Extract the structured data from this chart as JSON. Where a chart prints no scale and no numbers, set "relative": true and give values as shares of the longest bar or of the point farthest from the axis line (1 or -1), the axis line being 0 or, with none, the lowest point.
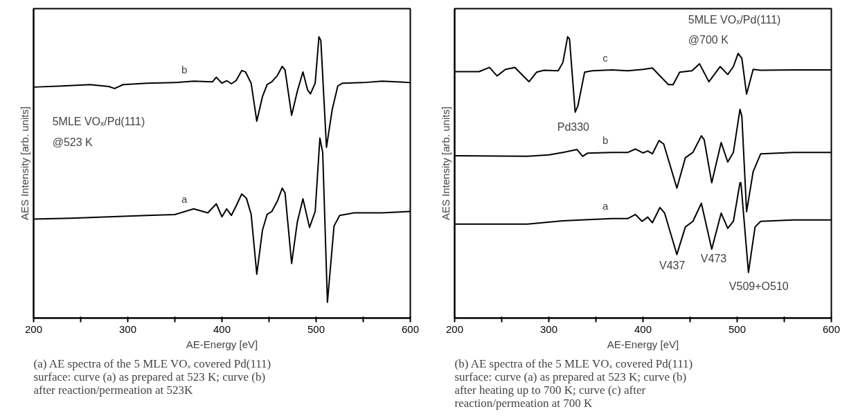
{
  "chart_data": [
    {
      "type": "line",
      "relative": true,
      "title": "(a) AE spectra of the 5 MLE VOₓ covered Pd(111) surface: curve (a) as prepared at 523 K; curve (b) after reaction/permeation at 523K",
      "xlabel": "AE-Energy [eV]",
      "ylabel": "AES Intensity [arb. units]",
      "xlim": [
        200,
        600
      ],
      "xticks": [
        200,
        {
          "value": 250,
          "label": null
        },
        300,
        {
          "value": 350,
          "label": null
        },
        400,
        {
          "value": 450,
          "label": null
        },
        500,
        {
          "value": 550,
          "label": null
        },
        600
      ],
      "series": [
        {
          "name": "a",
          "color": "#000000",
          "x": [
            200,
            240,
            280,
            320,
            350,
            370,
            385,
            394,
            400,
            405,
            410,
            415,
            421,
            426,
            431,
            437,
            443,
            448,
            453,
            459,
            464,
            467,
            474,
            480,
            486,
            493,
            499,
            504,
            507,
            512,
            519,
            525,
            540,
            570,
            600
          ],
          "values": [
            0.352,
            0.355,
            0.36,
            0.365,
            0.368,
            0.388,
            0.374,
            0.406,
            0.36,
            0.388,
            0.365,
            0.398,
            0.441,
            0.426,
            0.369,
            0.156,
            0.312,
            0.369,
            0.379,
            0.417,
            0.462,
            0.445,
            0.194,
            0.341,
            0.424,
            0.322,
            0.379,
            0.64,
            0.588,
            0.056,
            0.327,
            0.365,
            0.374,
            0.374,
            0.379
          ]
        },
        {
          "name": "b",
          "color": "#000000",
          "x": [
            200,
            230,
            260,
            280,
            286,
            295,
            320,
            350,
            370,
            390,
            394,
            400,
            405,
            410,
            415,
            421,
            425,
            431,
            437,
            443,
            448,
            453,
            459,
            464,
            467,
            474,
            480,
            486,
            491,
            494,
            499,
            503,
            505,
            511,
            517,
            523,
            528,
            550,
            570,
            590,
            600
          ],
          "values": [
            0.821,
            0.825,
            0.83,
            0.823,
            0.816,
            0.83,
            0.835,
            0.837,
            0.842,
            0.84,
            0.856,
            0.835,
            0.844,
            0.833,
            0.844,
            0.88,
            0.875,
            0.835,
            0.7,
            0.787,
            0.83,
            0.84,
            0.863,
            0.895,
            0.882,
            0.721,
            0.806,
            0.875,
            0.811,
            0.797,
            0.835,
            1.0,
            0.987,
            0.607,
            0.74,
            0.825,
            0.835,
            0.837,
            0.842,
            0.839,
            0.837
          ]
        }
      ],
      "annotations": [
        "5MLE VOₓ/Pd(111)",
        "@523 K"
      ]
    },
    {
      "type": "line",
      "relative": true,
      "title": "(b) AE spectra of the 5 MLE VOₓ covered Pd(111) surface: curve (a) as prepared at 523 K; curve (b) after heating up to 700 K; curve (c) after reaction/permeation at 700 K",
      "xlabel": "AE-Energy [eV]",
      "ylabel": "AES Intensity [arb. units]",
      "xlim": [
        200,
        600
      ],
      "xticks": [
        200,
        {
          "value": 250,
          "label": null
        },
        300,
        {
          "value": 350,
          "label": null
        },
        400,
        {
          "value": 450,
          "label": null
        },
        500,
        {
          "value": 550,
          "label": null
        },
        600
      ],
      "series": [
        {
          "name": "a",
          "color": "#000000",
          "x": [
            200,
            277,
            315,
            367,
            384,
            392,
            399,
            405,
            410,
            418,
            423,
            436,
            445,
            453,
            462,
            473,
            483,
            490,
            496,
            503,
            504,
            512,
            519,
            525,
            560,
            600
          ],
          "values": [
            0.334,
            0.334,
            0.346,
            0.354,
            0.354,
            0.368,
            0.344,
            0.359,
            0.339,
            0.393,
            0.373,
            0.226,
            0.324,
            0.344,
            0.408,
            0.245,
            0.373,
            0.319,
            0.344,
            0.481,
            0.481,
            0.162,
            0.324,
            0.344,
            0.349,
            0.349
          ]
        },
        {
          "name": "b",
          "color": "#000000",
          "x": [
            200,
            277,
            300,
            315,
            330,
            336,
            341,
            367,
            384,
            392,
            400,
            405,
            410,
            417,
            422,
            436,
            445,
            453,
            462,
            465,
            473,
            483,
            490,
            496,
            503,
            505,
            510,
            517,
            525,
            560,
            600
          ],
          "values": [
            0.577,
            0.575,
            0.58,
            0.589,
            0.599,
            0.575,
            0.586,
            0.589,
            0.589,
            0.601,
            0.587,
            0.594,
            0.584,
            0.631,
            0.619,
            0.462,
            0.57,
            0.589,
            0.648,
            0.634,
            0.481,
            0.624,
            0.555,
            0.589,
            0.742,
            0.717,
            0.378,
            0.521,
            0.584,
            0.589,
            0.589
          ]
        },
        {
          "name": "c",
          "color": "#000000",
          "x": [
            200,
            226,
            237,
            245,
            254,
            264,
            274,
            279,
            287,
            295,
            310,
            315,
            320,
            322,
            328,
            331,
            338,
            346,
            367,
            384,
            400,
            410,
            427,
            432,
            439,
            452,
            460,
            470,
            482,
            490,
            496,
            501,
            505,
            510,
            517,
            525,
            560,
            600
          ],
          "values": [
            0.876,
            0.876,
            0.891,
            0.861,
            0.884,
            0.891,
            0.857,
            0.84,
            0.874,
            0.881,
            0.879,
            0.909,
            1.0,
            0.992,
            0.732,
            0.756,
            0.874,
            0.879,
            0.882,
            0.879,
            0.884,
            0.889,
            0.83,
            0.83,
            0.874,
            0.879,
            0.904,
            0.84,
            0.894,
            0.866,
            0.894,
            0.941,
            0.923,
            0.796,
            0.884,
            0.881,
            0.882,
            0.882
          ]
        }
      ],
      "annotations": [
        "Pd330",
        "V437",
        "V473",
        "V509+O510",
        "5MLE VOₓ/Pd(111)",
        "@700 K"
      ]
    }
  ]
}
